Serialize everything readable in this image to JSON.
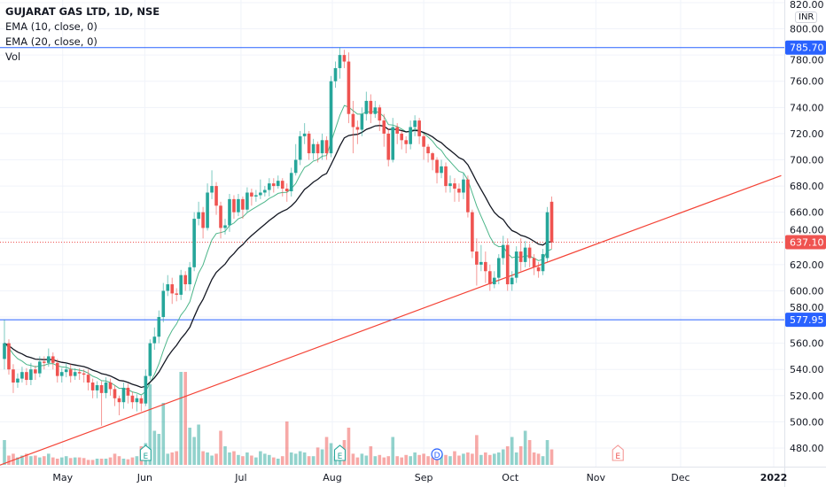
{
  "legend": {
    "title": "GUJARAT GAS LTD, 1D, NSE",
    "ema10": "EMA (10, close, 0)",
    "ema20": "EMA (20, close, 0)",
    "vol": "Vol"
  },
  "currency": "INR",
  "colors": {
    "up": "#26a69a",
    "down": "#ef5350",
    "ema10": "#4db68a",
    "ema20": "#131722",
    "hline": "#2962ff",
    "trend": "#f44336",
    "grid": "#f0f3fa"
  },
  "chart_data": {
    "type": "candlestick",
    "ylim": [
      465.8,
      822
    ],
    "yticks": [
      480,
      500,
      520,
      540,
      560,
      580,
      600,
      620,
      640,
      660,
      680,
      700,
      720,
      740,
      760,
      780,
      800,
      820
    ],
    "xticks": [
      {
        "label": "May",
        "bar": 13.2
      },
      {
        "label": "Jun",
        "bar": 31.8
      },
      {
        "label": "Jul",
        "bar": 53.6
      },
      {
        "label": "Aug",
        "bar": 74.3
      },
      {
        "label": "Sep",
        "bar": 95
      },
      {
        "label": "Oct",
        "bar": 114.6
      },
      {
        "label": "Nov",
        "bar": 134
      },
      {
        "label": "Dec",
        "bar": 153.2
      },
      {
        "label": "2022",
        "bar": 174.3
      }
    ],
    "last_price": "637.10",
    "hlines": [
      {
        "price": 785.7,
        "label": "785.70"
      },
      {
        "price": 577.95,
        "label": "577.95"
      }
    ],
    "trendline": [
      {
        "bar": -1,
        "price": 467
      },
      {
        "bar": 176,
        "price": 688
      }
    ],
    "events": [
      {
        "type": "E",
        "bar": 32
      },
      {
        "type": "E",
        "bar": 76
      },
      {
        "type": "D",
        "bar": 98
      },
      {
        "type": "E",
        "bar": 139,
        "future": true
      }
    ],
    "ema_periods": [
      10,
      20
    ],
    "open": [
      548,
      560,
      540,
      530,
      533,
      538,
      532,
      540,
      537,
      546,
      545,
      550,
      545,
      535,
      538,
      540,
      535,
      538,
      537,
      536,
      530,
      524,
      528,
      522,
      530,
      525,
      518,
      515,
      526,
      520,
      515,
      518,
      514,
      535,
      560,
      565,
      580,
      600,
      605,
      598,
      597,
      612,
      605,
      618,
      655,
      660,
      648,
      675,
      680,
      665,
      648,
      650,
      670,
      660,
      670,
      662,
      675,
      672,
      673,
      675,
      677,
      682,
      680,
      684,
      678,
      676,
      690,
      700,
      718,
      720,
      705,
      712,
      705,
      715,
      705,
      760,
      770,
      780,
      775,
      735,
      725,
      723,
      735,
      745,
      735,
      740,
      730,
      720,
      700,
      725,
      720,
      715,
      712,
      725,
      730,
      718,
      710,
      705,
      700,
      690,
      695,
      680,
      682,
      678,
      675,
      685,
      660,
      630,
      620,
      622,
      615,
      605,
      610,
      625,
      635,
      605,
      610,
      630,
      622,
      633,
      625,
      618,
      615,
      625,
      668
    ],
    "high": [
      578,
      563,
      544,
      537,
      542,
      541,
      545,
      543,
      550,
      550,
      556,
      553,
      548,
      541,
      545,
      544,
      541,
      541,
      540,
      540,
      533,
      531,
      531,
      534,
      533,
      528,
      520,
      530,
      529,
      523,
      521,
      520,
      540,
      563,
      572,
      585,
      606,
      612,
      610,
      602,
      616,
      615,
      622,
      660,
      668,
      664,
      682,
      692,
      683,
      668,
      655,
      674,
      673,
      674,
      672,
      679,
      678,
      677,
      685,
      680,
      686,
      686,
      688,
      686,
      682,
      694,
      712,
      722,
      728,
      722,
      716,
      714,
      720,
      718,
      764,
      775,
      786,
      784,
      782,
      745,
      730,
      740,
      752,
      750,
      745,
      742,
      735,
      724,
      732,
      728,
      722,
      718,
      730,
      734,
      732,
      720,
      712,
      706,
      702,
      700,
      698,
      688,
      686,
      682,
      690,
      688,
      662,
      640,
      635,
      630,
      620,
      615,
      628,
      642,
      640,
      615,
      634,
      640,
      638,
      636,
      628,
      622,
      632,
      664,
      672
    ],
    "low": [
      540,
      536,
      522,
      526,
      530,
      528,
      528,
      532,
      534,
      540,
      542,
      540,
      530,
      530,
      534,
      530,
      532,
      532,
      530,
      524,
      518,
      518,
      497,
      518,
      520,
      512,
      505,
      510,
      514,
      510,
      508,
      508,
      512,
      532,
      555,
      560,
      576,
      596,
      590,
      592,
      593,
      600,
      600,
      615,
      650,
      640,
      646,
      670,
      658,
      640,
      643,
      645,
      655,
      657,
      655,
      660,
      665,
      668,
      670,
      672,
      672,
      675,
      678,
      672,
      668,
      672,
      688,
      696,
      712,
      700,
      700,
      698,
      700,
      700,
      702,
      755,
      762,
      770,
      728,
      705,
      712,
      718,
      730,
      728,
      732,
      722,
      710,
      695,
      698,
      712,
      708,
      705,
      708,
      718,
      712,
      700,
      698,
      692,
      682,
      686,
      675,
      675,
      668,
      668,
      670,
      656,
      625,
      604,
      615,
      606,
      600,
      602,
      605,
      620,
      600,
      600,
      606,
      615,
      618,
      618,
      612,
      610,
      612,
      622,
      632
    ],
    "close": [
      560,
      540,
      530,
      533,
      538,
      532,
      540,
      537,
      546,
      545,
      550,
      545,
      535,
      538,
      540,
      535,
      538,
      537,
      536,
      530,
      524,
      528,
      522,
      530,
      525,
      518,
      515,
      526,
      520,
      515,
      518,
      514,
      535,
      560,
      565,
      580,
      600,
      605,
      598,
      597,
      612,
      605,
      618,
      655,
      660,
      648,
      675,
      680,
      665,
      648,
      650,
      670,
      660,
      670,
      662,
      675,
      672,
      673,
      675,
      677,
      682,
      680,
      684,
      678,
      676,
      690,
      700,
      718,
      720,
      705,
      712,
      705,
      715,
      705,
      760,
      770,
      780,
      775,
      735,
      725,
      723,
      735,
      745,
      735,
      740,
      730,
      720,
      700,
      725,
      720,
      715,
      712,
      725,
      730,
      718,
      710,
      705,
      700,
      690,
      695,
      680,
      682,
      678,
      675,
      685,
      660,
      630,
      620,
      622,
      615,
      605,
      610,
      625,
      635,
      605,
      610,
      630,
      622,
      633,
      625,
      618,
      615,
      628,
      660,
      637
    ],
    "volume": [
      40,
      15,
      18,
      12,
      15,
      18,
      14,
      15,
      12,
      14,
      18,
      12,
      10,
      12,
      14,
      11,
      12,
      12,
      11,
      8,
      8,
      10,
      10,
      10,
      12,
      18,
      14,
      10,
      9,
      12,
      14,
      30,
      35,
      130,
      55,
      50,
      100,
      18,
      20,
      22,
      150,
      150,
      60,
      45,
      65,
      22,
      20,
      15,
      18,
      55,
      30,
      20,
      22,
      16,
      14,
      20,
      15,
      12,
      22,
      18,
      16,
      12,
      10,
      14,
      70,
      20,
      18,
      22,
      20,
      14,
      14,
      28,
      25,
      45,
      35,
      14,
      20,
      40,
      60,
      18,
      12,
      18,
      15,
      30,
      14,
      16,
      12,
      14,
      45,
      14,
      12,
      16,
      14,
      20,
      16,
      18,
      14,
      12,
      12,
      18,
      16,
      14,
      22,
      15,
      18,
      20,
      18,
      48,
      16,
      20,
      16,
      18,
      20,
      25,
      30,
      45,
      20,
      30,
      55,
      40,
      20,
      18,
      14,
      40,
      25
    ]
  }
}
